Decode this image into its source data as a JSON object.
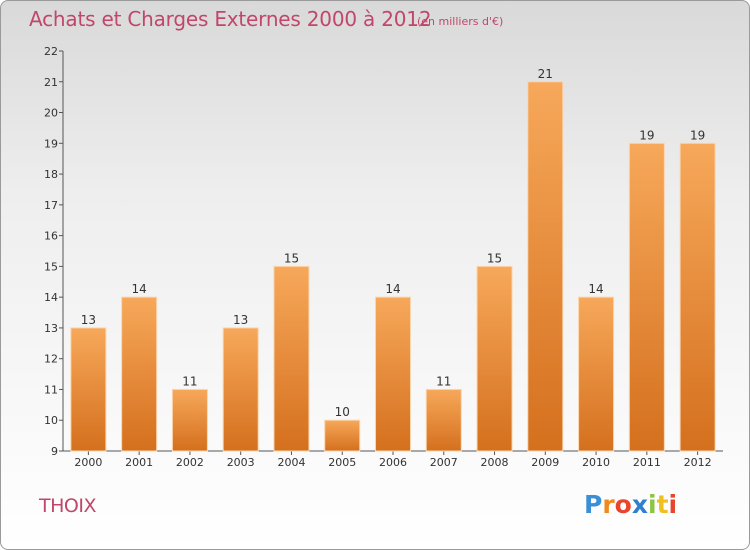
{
  "header": {
    "title": "Achats et Charges Externes 2000 à 2012",
    "unit": "(en milliers d'€)"
  },
  "footer": {
    "commune": "THOIX",
    "logo_letters": [
      {
        "ch": "P",
        "color": "#3a8fd6"
      },
      {
        "ch": "r",
        "color": "#f08a1c"
      },
      {
        "ch": "o",
        "color": "#e8452c"
      },
      {
        "ch": "x",
        "color": "#2f7fcf"
      },
      {
        "ch": "i",
        "color": "#8cc63f"
      },
      {
        "ch": "t",
        "color": "#f0c020"
      },
      {
        "ch": "i",
        "color": "#e8452c"
      }
    ]
  },
  "colors": {
    "text_accent": "#c0476b",
    "bar_top": "#f7a85a",
    "bar_bottom": "#d4701e"
  },
  "chart_data": {
    "type": "bar",
    "title": "Achats et Charges Externes 2000 à 2012",
    "subtitle": "(en milliers d'€)",
    "categories": [
      "2000",
      "2001",
      "2002",
      "2003",
      "2004",
      "2005",
      "2006",
      "2007",
      "2008",
      "2009",
      "2010",
      "2011",
      "2012"
    ],
    "values": [
      13,
      14,
      11,
      13,
      15,
      10,
      14,
      11,
      15,
      21,
      14,
      19,
      19
    ],
    "data_labels": [
      "13",
      "14",
      "11",
      "13",
      "15",
      "10",
      "14",
      "11",
      "15",
      "21",
      "14",
      "19",
      "19"
    ],
    "ylim": [
      9,
      22
    ],
    "yticks": [
      9,
      10,
      11,
      12,
      13,
      14,
      15,
      16,
      17,
      18,
      19,
      20,
      21,
      22
    ],
    "ytick_labels": [
      "9",
      "10",
      "11",
      "12",
      "13",
      "14",
      "15",
      "16",
      "17",
      "18",
      "19",
      "20",
      "21",
      "22"
    ],
    "grid": false,
    "xlabel": "",
    "ylabel": ""
  }
}
